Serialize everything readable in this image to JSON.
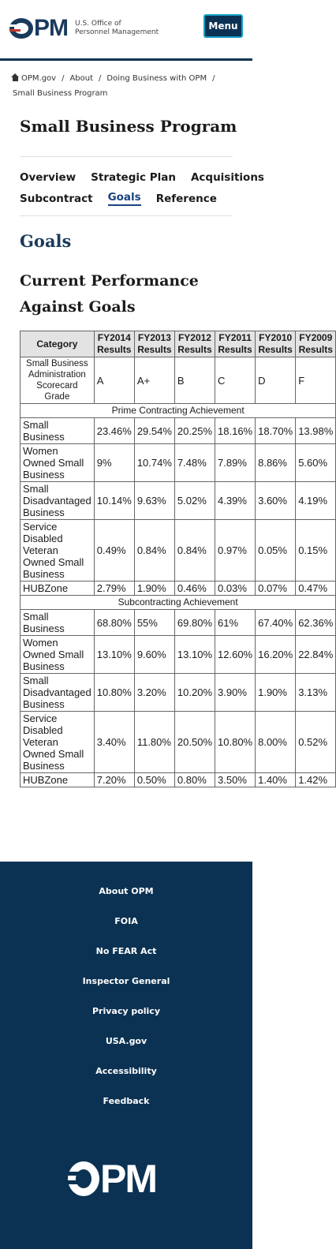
{
  "header": {
    "logo_text_line1": "U.S. Office of",
    "logo_text_line2": "Personnel Management",
    "logo_mark": "OPM",
    "menu_label": "Menu"
  },
  "breadcrumb": {
    "items": [
      "OPM.gov",
      "About",
      "Doing Business with OPM"
    ],
    "current": "Small Business Program"
  },
  "page": {
    "title": "Small Business Program",
    "tabs_row1": [
      "Overview",
      "Strategic Plan",
      "Acquisitions"
    ],
    "tabs_row2": [
      "Subcontract",
      "Goals",
      "Reference"
    ],
    "active_tab": "Goals",
    "section_heading": "Goals",
    "sub_heading": "Current Performance Against Goals"
  },
  "table": {
    "headers": [
      "Category",
      "FY2014 Results",
      "FY2013 Results",
      "FY2012 Results",
      "FY2011 Results",
      "FY2010 Results",
      "FY2009 Results"
    ],
    "grade_row": {
      "label": "Small Business Administration Scorecard Grade",
      "values": [
        "A",
        "A+",
        "B",
        "C",
        "D",
        "F"
      ]
    },
    "prime_label": "Prime Contracting Achievement",
    "prime_rows": [
      {
        "category": "Small Business",
        "values": [
          "23.46%",
          "29.54%",
          "20.25%",
          "18.16%",
          "18.70%",
          "13.98%"
        ]
      },
      {
        "category": "Women Owned Small Business",
        "values": [
          "9%",
          "10.74%",
          "7.48%",
          "7.89%",
          "8.86%",
          "5.60%"
        ]
      },
      {
        "category": "Small Disadvantaged Business",
        "values": [
          "10.14%",
          "9.63%",
          "5.02%",
          "4.39%",
          "3.60%",
          "4.19%"
        ]
      },
      {
        "category": "Service Disabled Veteran Owned Small Business",
        "values": [
          "0.49%",
          "0.84%",
          "0.84%",
          "0.97%",
          "0.05%",
          "0.15%"
        ]
      },
      {
        "category": "HUBZone",
        "values": [
          "2.79%",
          "1.90%",
          "0.46%",
          "0.03%",
          "0.07%",
          "0.47%"
        ]
      }
    ],
    "sub_label": "Subcontracting Achievement",
    "sub_rows": [
      {
        "category": "Small Business",
        "values": [
          "68.80%",
          "55%",
          "69.80%",
          "61%",
          "67.40%",
          "62.36%"
        ]
      },
      {
        "category": "Women Owned Small Business",
        "values": [
          "13.10%",
          "9.60%",
          "13.10%",
          "12.60%",
          "16.20%",
          "22.84%"
        ]
      },
      {
        "category": "Small Disadvantaged Business",
        "values": [
          "10.80%",
          "3.20%",
          "10.20%",
          "3.90%",
          "1.90%",
          "3.13%"
        ]
      },
      {
        "category": "Service Disabled Veteran Owned Small Business",
        "values": [
          "3.40%",
          "11.80%",
          "20.50%",
          "10.80%",
          "8.00%",
          "0.52%"
        ]
      },
      {
        "category": "HUBZone",
        "values": [
          "7.20%",
          "0.50%",
          "0.80%",
          "3.50%",
          "1.40%",
          "1.42%"
        ]
      }
    ]
  },
  "footer": {
    "links": [
      "About OPM",
      "FOIA",
      "No FEAR Act",
      "Inspector General",
      "Privacy policy",
      "USA.gov",
      "Accessibility",
      "Feedback"
    ],
    "logo_mark": "OPM"
  },
  "colors": {
    "navy": "#0b3252",
    "link_blue": "#1a4480",
    "menu_border": "#16a0c8"
  }
}
